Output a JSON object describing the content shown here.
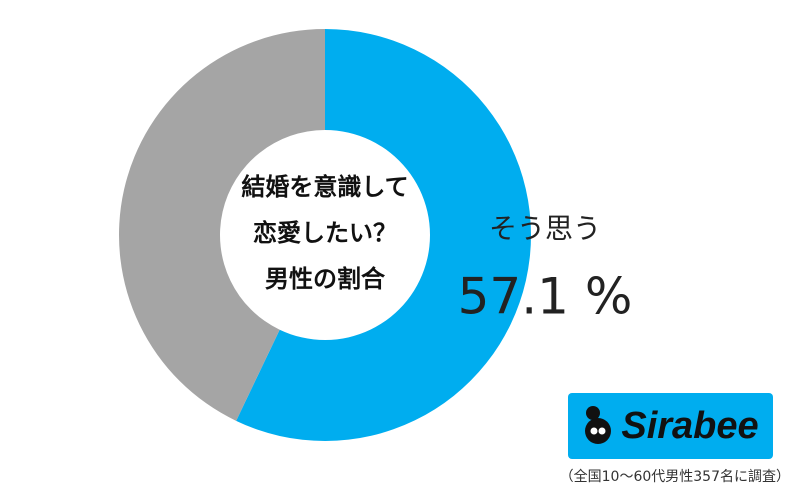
{
  "chart_data": {
    "type": "donut",
    "center_text": [
      "結婚を意識して",
      "恋愛したい？",
      "男性の割合"
    ],
    "categories": [
      "そう思う",
      null
    ],
    "values": [
      57.1,
      42.9
    ],
    "value_labels": [
      "57.1 %",
      null
    ],
    "colors": [
      "#00adef",
      "#a5a5a5"
    ],
    "logo": "Sirabee",
    "note": "（全国10～60代男性357名に調査）"
  }
}
